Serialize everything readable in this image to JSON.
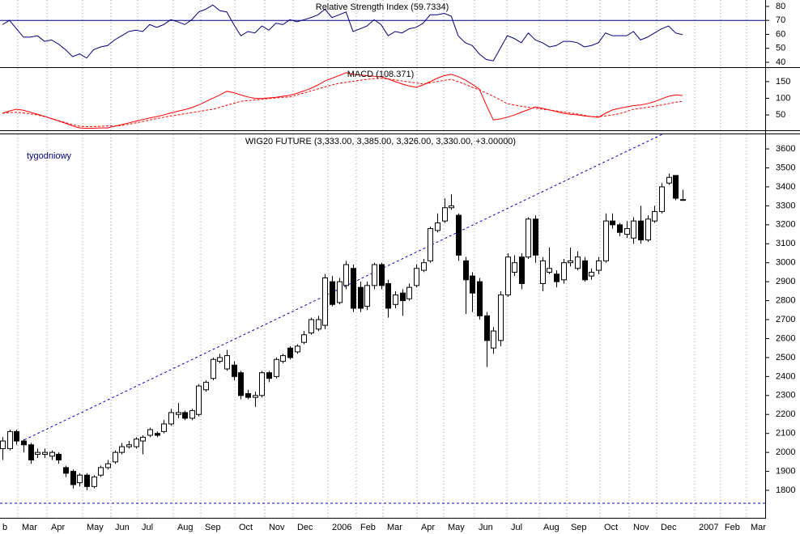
{
  "chart_data": [
    {
      "type": "line",
      "title": "Relative Strength Index (59.7334)",
      "ylim": [
        36.5,
        84.6
      ],
      "yticks": [
        40,
        50,
        60,
        70,
        80
      ],
      "hline": 70,
      "grid": true,
      "series": [
        {
          "color": "#000080",
          "values": [
            67,
            70,
            64,
            58,
            58,
            59,
            55,
            56,
            53,
            49,
            44,
            46,
            43,
            49,
            51,
            52,
            56,
            59,
            62,
            63,
            62,
            67,
            65,
            67,
            70.5,
            69,
            67,
            70.5,
            76,
            78,
            81,
            77,
            76,
            67,
            59,
            62,
            61,
            66,
            63,
            68,
            67,
            70.5,
            69,
            70.5,
            72,
            74,
            78,
            72,
            74,
            76,
            62,
            64,
            66,
            70.5,
            67,
            59,
            62,
            61,
            64,
            65,
            68,
            74,
            74,
            75,
            73,
            59,
            54,
            52,
            46,
            42,
            41,
            50,
            59,
            57,
            54,
            61,
            56,
            54,
            51,
            52,
            55,
            55,
            54,
            51,
            52,
            54,
            61,
            59,
            59,
            59,
            62,
            56,
            58,
            61,
            64,
            66,
            61,
            59.7334
          ]
        }
      ]
    },
    {
      "type": "line",
      "title": "MACD (108.371)",
      "ylim": [
        4,
        191
      ],
      "yticks": [
        50,
        100,
        150
      ],
      "grid": true,
      "series": [
        {
          "color": "#ff0000",
          "dashed": false,
          "values": [
            55,
            62,
            67,
            64,
            58,
            52,
            46,
            39,
            32,
            25,
            17,
            11,
            10,
            10,
            11,
            11,
            16,
            21,
            26,
            31,
            36,
            41,
            45,
            50,
            56,
            61,
            66,
            72,
            80,
            90,
            100,
            110,
            121,
            117,
            110,
            104,
            100,
            99,
            101,
            103,
            106,
            109,
            115,
            122,
            130,
            140,
            152,
            160,
            168,
            177,
            172,
            170,
            168,
            166,
            165,
            158,
            150,
            143,
            137,
            133,
            140,
            150,
            160,
            168,
            172,
            165,
            155,
            142,
            128,
            80,
            35,
            38,
            43,
            50,
            58,
            66,
            74,
            70,
            65,
            60,
            55,
            52,
            50,
            47,
            45,
            43,
            55,
            65,
            70,
            74,
            78,
            80,
            84,
            90,
            98,
            106,
            110,
            108.371
          ]
        },
        {
          "color": "#ff0000",
          "dashed": true,
          "values": [
            55,
            57,
            58,
            56,
            53,
            50,
            45,
            39,
            33,
            27,
            21,
            16,
            15,
            15,
            16,
            17,
            17,
            18,
            22,
            26,
            30,
            35,
            39,
            43,
            47,
            50,
            54,
            57,
            60,
            64,
            67,
            73,
            79,
            85,
            91,
            93,
            95,
            97,
            99,
            101,
            103,
            104,
            110,
            116,
            122,
            128,
            134,
            140,
            145,
            148,
            151,
            154,
            157,
            159,
            160,
            158,
            155,
            152,
            149,
            146,
            143,
            146,
            150,
            154,
            157,
            150,
            142,
            133,
            125,
            116,
            106,
            95,
            84,
            80,
            76,
            73,
            70,
            67,
            65,
            62,
            59,
            56,
            53,
            49,
            45,
            45,
            47,
            50,
            54,
            60,
            67,
            70,
            73,
            76,
            80,
            84,
            88,
            91
          ]
        }
      ]
    },
    {
      "type": "candlestick",
      "title": "WIG20 FUTURE (3,333.00, 3,385.00, 3,326.00, 3,330.00, +3.00000)",
      "annotation": "tygodniowy",
      "ylim": [
        1655,
        3677
      ],
      "yticks": [
        1800,
        1900,
        2000,
        2100,
        2200,
        2300,
        2400,
        2500,
        2600,
        2700,
        2800,
        2900,
        3000,
        3100,
        3200,
        3300,
        3400,
        3500,
        3600
      ],
      "xlim": [
        -0.35,
        108.78
      ],
      "xticks": [
        {
          "value": -0.58,
          "label": "b"
        },
        {
          "value": 2.19,
          "label": "Mar"
        },
        {
          "value": 6.35,
          "label": "Apr"
        },
        {
          "value": 11.43,
          "label": "May"
        },
        {
          "value": 15.47,
          "label": "Jun"
        },
        {
          "value": 19.28,
          "label": "Jul"
        },
        {
          "value": 24.36,
          "label": "Aug"
        },
        {
          "value": 28.29,
          "label": "Sep"
        },
        {
          "value": 33.14,
          "label": "Oct"
        },
        {
          "value": 37.41,
          "label": "Nov"
        },
        {
          "value": 41.45,
          "label": "Dec"
        },
        {
          "value": 46.42,
          "label": "2006"
        },
        {
          "value": 50.46,
          "label": "Feb"
        },
        {
          "value": 54.27,
          "label": "Mar"
        },
        {
          "value": 59.12,
          "label": "Apr"
        },
        {
          "value": 62.93,
          "label": "May"
        },
        {
          "value": 67.32,
          "label": "Jun"
        },
        {
          "value": 71.94,
          "label": "Jul"
        },
        {
          "value": 76.56,
          "label": "Aug"
        },
        {
          "value": 80.48,
          "label": "Sep"
        },
        {
          "value": 85.22,
          "label": "Oct"
        },
        {
          "value": 89.38,
          "label": "Nov"
        },
        {
          "value": 93.3,
          "label": "Dec"
        },
        {
          "value": 98.73,
          "label": "2007"
        },
        {
          "value": 102.42,
          "label": "Feb"
        },
        {
          "value": 106.12,
          "label": "Mar"
        }
      ],
      "grid": true,
      "up_color": "#ffffff",
      "down_color": "#000000",
      "edge_color": "#000000",
      "trendline": {
        "x": [
          3.12,
          94.1
        ],
        "y": [
          2066,
          3677
        ],
        "color": "#0000cc"
      },
      "hline": {
        "value": 1732,
        "color": "#0000cc"
      },
      "open": [
        2020,
        2020,
        2110,
        2060,
        2040,
        1990,
        1990,
        1980,
        1990,
        1920,
        1900,
        1840,
        1880,
        1820,
        1880,
        1920,
        1950,
        2000,
        2030,
        2030,
        2060,
        2090,
        2100,
        2110,
        2150,
        2200,
        2210,
        2180,
        2200,
        2330,
        2390,
        2480,
        2440,
        2460,
        2420,
        2310,
        2290,
        2300,
        2420,
        2400,
        2480,
        2550,
        2530,
        2580,
        2630,
        2650,
        2670,
        2900,
        2790,
        2880,
        2970,
        2870,
        2770,
        2880,
        2990,
        2890,
        2780,
        2840,
        2810,
        2880,
        2960,
        3010,
        3170,
        3220,
        3290,
        3250,
        3010,
        2930,
        2900,
        2720,
        2550,
        2590,
        2830,
        2950,
        3030,
        3030,
        3230,
        2890,
        2950,
        2940,
        2910,
        3000,
        2970,
        3010,
        2930,
        2960,
        3010,
        3220,
        3200,
        3150,
        3130,
        3220,
        3120,
        3220,
        3270,
        3420,
        3460,
        3333
      ],
      "high": [
        2080,
        2120,
        2120,
        2070,
        2050,
        2020,
        2020,
        2010,
        2000,
        1930,
        1910,
        1890,
        1890,
        1880,
        1930,
        1960,
        2010,
        2050,
        2060,
        2080,
        2090,
        2130,
        2110,
        2170,
        2230,
        2260,
        2220,
        2230,
        2360,
        2380,
        2500,
        2520,
        2540,
        2480,
        2430,
        2330,
        2320,
        2430,
        2430,
        2500,
        2520,
        2560,
        2570,
        2640,
        2710,
        2720,
        2940,
        2930,
        2920,
        3010,
        2990,
        2900,
        2900,
        3000,
        3000,
        2910,
        2850,
        2860,
        2890,
        2990,
        3020,
        3190,
        3260,
        3340,
        3360,
        3260,
        3030,
        2950,
        2920,
        2740,
        2660,
        2850,
        3050,
        3040,
        3050,
        3240,
        3250,
        3030,
        3080,
        2960,
        3020,
        3080,
        3060,
        3030,
        2970,
        3030,
        3260,
        3260,
        3210,
        3220,
        3240,
        3300,
        3250,
        3300,
        3420,
        3470,
        3460,
        3385
      ],
      "low": [
        1960,
        2010,
        2040,
        2000,
        1940,
        1970,
        1970,
        1960,
        1940,
        1870,
        1810,
        1820,
        1800,
        1810,
        1870,
        1910,
        1940,
        1990,
        2020,
        2020,
        1990,
        2080,
        2080,
        2100,
        2140,
        2180,
        2170,
        2170,
        2190,
        2320,
        2380,
        2470,
        2430,
        2380,
        2280,
        2280,
        2240,
        2290,
        2370,
        2390,
        2470,
        2490,
        2520,
        2570,
        2620,
        2640,
        2650,
        2770,
        2780,
        2860,
        2740,
        2740,
        2750,
        2860,
        2860,
        2710,
        2760,
        2720,
        2800,
        2870,
        2950,
        3000,
        3160,
        3210,
        3280,
        3010,
        2730,
        2740,
        2700,
        2450,
        2520,
        2560,
        2820,
        2930,
        2860,
        3020,
        3000,
        2850,
        2940,
        2870,
        2890,
        2980,
        2960,
        2900,
        2910,
        2940,
        3000,
        3180,
        3140,
        3130,
        3100,
        3100,
        3110,
        3210,
        3260,
        3410,
        3330,
        3326
      ],
      "close": [
        2060,
        2110,
        2060,
        2040,
        1960,
        2000,
        2000,
        2000,
        1960,
        1890,
        1830,
        1880,
        1820,
        1870,
        1920,
        1940,
        2000,
        2030,
        2040,
        2070,
        2080,
        2120,
        2090,
        2150,
        2210,
        2210,
        2180,
        2220,
        2350,
        2370,
        2490,
        2500,
        2510,
        2400,
        2300,
        2290,
        2300,
        2420,
        2390,
        2490,
        2510,
        2500,
        2560,
        2620,
        2700,
        2700,
        2920,
        2780,
        2900,
        2990,
        2760,
        2760,
        2880,
        2990,
        2880,
        2760,
        2830,
        2800,
        2870,
        2970,
        3000,
        3180,
        3210,
        3290,
        3300,
        3040,
        2910,
        2840,
        2720,
        2590,
        2640,
        2830,
        3030,
        3000,
        2890,
        3230,
        3040,
        3010,
        2970,
        2900,
        3000,
        3010,
        3030,
        2910,
        2950,
        3010,
        3220,
        3200,
        3160,
        3180,
        3220,
        3120,
        3230,
        3270,
        3400,
        3450,
        3340,
        3330
      ]
    }
  ]
}
